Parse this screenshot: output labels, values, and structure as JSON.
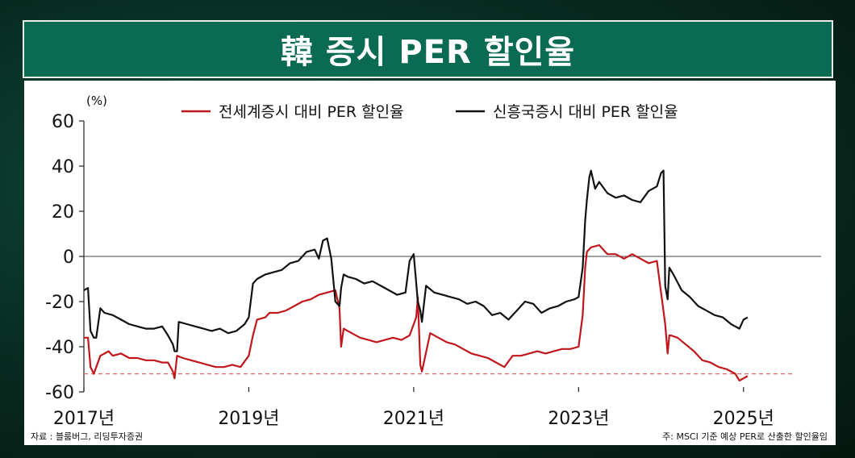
{
  "header": {
    "title": "韓 증시 PER 할인율"
  },
  "footer": {
    "source": "자료 : 블룸버그, 리딩투자증권",
    "note": "주: MSCI 기준 예상 PER로 산출한 할인율임"
  },
  "colors": {
    "world": "#c0161c",
    "em": "#111111",
    "banner": "#0b6b52",
    "reference": "#e06a6a"
  },
  "chart_data": {
    "type": "line",
    "title": "",
    "ylabel": "",
    "unit_label": "(%)",
    "xlim": [
      2017.0,
      2025.5
    ],
    "ylim": [
      -60,
      60
    ],
    "yticks": [
      60,
      40,
      20,
      0,
      -20,
      -40,
      -60
    ],
    "xticks": [
      {
        "x": 2017.0,
        "label": "2017년"
      },
      {
        "x": 2019.0,
        "label": "2019년"
      },
      {
        "x": 2021.0,
        "label": "2021년"
      },
      {
        "x": 2023.0,
        "label": "2023년"
      },
      {
        "x": 2025.0,
        "label": "2025년"
      }
    ],
    "zero_line": 0,
    "reference_line": -52,
    "legend_position": "top",
    "series": [
      {
        "name": "전세계증시 대비 PER 할인율",
        "x": [
          2017.0,
          2017.05,
          2017.08,
          2017.12,
          2017.2,
          2017.25,
          2017.3,
          2017.35,
          2017.45,
          2017.55,
          2017.65,
          2017.75,
          2017.85,
          2017.95,
          2018.02,
          2018.08,
          2018.1,
          2018.13,
          2018.2,
          2018.3,
          2018.4,
          2018.5,
          2018.6,
          2018.7,
          2018.8,
          2018.9,
          2019.0,
          2019.05,
          2019.1,
          2019.2,
          2019.25,
          2019.35,
          2019.45,
          2019.55,
          2019.65,
          2019.75,
          2019.85,
          2019.95,
          2020.05,
          2020.1,
          2020.12,
          2020.15,
          2020.25,
          2020.35,
          2020.45,
          2020.55,
          2020.65,
          2020.75,
          2020.85,
          2020.95,
          2021.03,
          2021.05,
          2021.08,
          2021.1,
          2021.2,
          2021.3,
          2021.4,
          2021.5,
          2021.6,
          2021.7,
          2021.8,
          2021.9,
          2022.0,
          2022.1,
          2022.2,
          2022.3,
          2022.4,
          2022.5,
          2022.6,
          2022.7,
          2022.8,
          2022.9,
          2023.0,
          2023.05,
          2023.08,
          2023.1,
          2023.15,
          2023.25,
          2023.35,
          2023.45,
          2023.55,
          2023.65,
          2023.75,
          2023.85,
          2023.95,
          2024.05,
          2024.08,
          2024.1,
          2024.12,
          2024.2,
          2024.3,
          2024.4,
          2024.5,
          2024.6,
          2024.7,
          2024.8,
          2024.9,
          2024.95,
          2025.0,
          2025.05
        ],
        "values": [
          -36,
          -36,
          -49,
          -52,
          -44,
          -43,
          -42,
          -44,
          -43,
          -45,
          -45,
          -46,
          -46,
          -47,
          -47,
          -51,
          -54,
          -44,
          -45,
          -46,
          -47,
          -48,
          -49,
          -49,
          -48,
          -49,
          -44,
          -35,
          -28,
          -27,
          -25,
          -25,
          -24,
          -22,
          -20,
          -19,
          -17,
          -16,
          -15,
          -23,
          -40,
          -32,
          -34,
          -36,
          -37,
          -38,
          -37,
          -36,
          -37,
          -35,
          -27,
          -18,
          -48,
          -51,
          -34,
          -36,
          -38,
          -39,
          -41,
          -43,
          -44,
          -45,
          -47,
          -49,
          -44,
          -44,
          -43,
          -42,
          -43,
          -42,
          -41,
          -41,
          -40,
          -26,
          -5,
          2,
          4,
          5,
          1,
          1,
          -1,
          1,
          -1,
          -3,
          -2,
          -30,
          -43,
          -35,
          -35,
          -36,
          -39,
          -42,
          -46,
          -47,
          -49,
          -50,
          -52,
          -55,
          -54,
          -53
        ]
      },
      {
        "name": "신흥국증시 대비 PER 할인율",
        "x": [
          2017.0,
          2017.05,
          2017.08,
          2017.12,
          2017.15,
          2017.2,
          2017.25,
          2017.35,
          2017.45,
          2017.55,
          2017.65,
          2017.75,
          2017.85,
          2017.95,
          2018.02,
          2018.08,
          2018.1,
          2018.13,
          2018.15,
          2018.25,
          2018.35,
          2018.45,
          2018.55,
          2018.65,
          2018.75,
          2018.85,
          2018.95,
          2019.0,
          2019.05,
          2019.1,
          2019.2,
          2019.3,
          2019.4,
          2019.5,
          2019.6,
          2019.7,
          2019.8,
          2019.85,
          2019.9,
          2019.95,
          2020.0,
          2020.05,
          2020.1,
          2020.12,
          2020.15,
          2020.2,
          2020.3,
          2020.4,
          2020.5,
          2020.6,
          2020.7,
          2020.8,
          2020.9,
          2020.95,
          2021.0,
          2021.05,
          2021.08,
          2021.1,
          2021.15,
          2021.25,
          2021.35,
          2021.45,
          2021.55,
          2021.65,
          2021.75,
          2021.85,
          2021.95,
          2022.05,
          2022.15,
          2022.25,
          2022.35,
          2022.45,
          2022.55,
          2022.65,
          2022.75,
          2022.85,
          2022.95,
          2023.0,
          2023.05,
          2023.08,
          2023.1,
          2023.13,
          2023.15,
          2023.2,
          2023.25,
          2023.35,
          2023.45,
          2023.55,
          2023.65,
          2023.75,
          2023.85,
          2023.95,
          2024.0,
          2024.03,
          2024.05,
          2024.08,
          2024.1,
          2024.15,
          2024.25,
          2024.35,
          2024.45,
          2024.55,
          2024.65,
          2024.75,
          2024.85,
          2024.95,
          2025.0,
          2025.05
        ],
        "values": [
          -15,
          -14,
          -33,
          -36,
          -36,
          -23,
          -25,
          -26,
          -28,
          -30,
          -31,
          -32,
          -32,
          -31,
          -35,
          -39,
          -42,
          -42,
          -29,
          -30,
          -31,
          -32,
          -33,
          -32,
          -34,
          -33,
          -30,
          -27,
          -12,
          -10,
          -8,
          -7,
          -6,
          -3,
          -2,
          2,
          3,
          -1,
          7,
          8,
          -1,
          -20,
          -22,
          -14,
          -8,
          -9,
          -10,
          -12,
          -11,
          -13,
          -15,
          -17,
          -16,
          -2,
          1,
          -20,
          -24,
          -29,
          -13,
          -16,
          -17,
          -18,
          -19,
          -21,
          -20,
          -22,
          -26,
          -25,
          -28,
          -24,
          -20,
          -21,
          -25,
          -23,
          -22,
          -20,
          -19,
          -18,
          -5,
          16,
          25,
          35,
          38,
          30,
          33,
          28,
          26,
          27,
          25,
          24,
          29,
          31,
          37,
          38,
          -13,
          -19,
          -5,
          -8,
          -15,
          -18,
          -22,
          -24,
          -26,
          -27,
          -30,
          -32,
          -28,
          -27
        ]
      }
    ]
  }
}
